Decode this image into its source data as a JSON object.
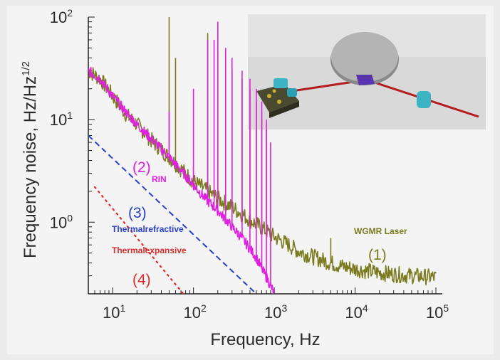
{
  "chart_data": {
    "type": "line",
    "title": "",
    "xlabel": "Frequency, Hz",
    "ylabel": "Frequency noise, Hz/Hz",
    "ylabel_exp": "1/2",
    "xscale": "log",
    "yscale": "log",
    "xlim": [
      5,
      120000
    ],
    "ylim": [
      0.2,
      100
    ],
    "xticks": [
      {
        "base": "10",
        "exp": "1",
        "value": 10
      },
      {
        "base": "10",
        "exp": "2",
        "value": 100
      },
      {
        "base": "10",
        "exp": "3",
        "value": 1000
      },
      {
        "base": "10",
        "exp": "4",
        "value": 10000
      },
      {
        "base": "10",
        "exp": "5",
        "value": 100000
      }
    ],
    "yticks": [
      {
        "base": "10",
        "exp": "0",
        "value": 1
      },
      {
        "base": "10",
        "exp": "1",
        "value": 10
      },
      {
        "base": "10",
        "exp": "2",
        "value": 100
      }
    ],
    "series": [
      {
        "name": "WGMR Laser",
        "tag": "(1)",
        "color": "#7a7a1e",
        "x": [
          5,
          7,
          10,
          15,
          20,
          30,
          50,
          70,
          100,
          150,
          200,
          300,
          500,
          700,
          1000,
          1500,
          2000,
          3000,
          5000,
          7000,
          10000,
          20000,
          50000,
          100000
        ],
        "y": [
          30,
          25,
          17,
          11,
          9,
          6.3,
          4.3,
          3.3,
          2.5,
          2.0,
          1.7,
          1.4,
          1.05,
          0.88,
          0.72,
          0.6,
          0.52,
          0.46,
          0.4,
          0.37,
          0.35,
          0.32,
          0.3,
          0.29
        ],
        "spikes": [
          [
            50,
            100
          ],
          [
            60,
            40
          ],
          [
            150,
            70
          ],
          [
            200,
            90
          ],
          [
            300,
            30
          ],
          [
            400,
            25
          ],
          [
            500,
            20
          ],
          [
            600,
            15
          ],
          [
            700,
            10
          ],
          [
            800,
            8
          ],
          [
            5000,
            0.7
          ]
        ]
      },
      {
        "name": "RIN",
        "tag": "(2)",
        "color": "#e020e0",
        "x": [
          5,
          7,
          10,
          15,
          20,
          30,
          50,
          70,
          100,
          150,
          200,
          300,
          400,
          500,
          600,
          700,
          800,
          900,
          1000
        ],
        "y": [
          30,
          25,
          17,
          11.5,
          9,
          6.5,
          4.3,
          3.2,
          2.3,
          1.6,
          1.3,
          0.9,
          0.7,
          0.55,
          0.45,
          0.35,
          0.29,
          0.24,
          0.2
        ],
        "spikes": [
          [
            50,
            12
          ],
          [
            100,
            20
          ],
          [
            150,
            60
          ],
          [
            180,
            60
          ],
          [
            200,
            90
          ],
          [
            250,
            50
          ],
          [
            300,
            40
          ],
          [
            400,
            30
          ],
          [
            500,
            25
          ],
          [
            600,
            20
          ],
          [
            700,
            15
          ],
          [
            800,
            10
          ],
          [
            900,
            6
          ]
        ]
      },
      {
        "name": "Thermalrefractive",
        "tag": "(3)",
        "color": "#2a3fc8",
        "style": "dashed",
        "x": [
          5,
          600
        ],
        "y": [
          7,
          0.2
        ]
      },
      {
        "name": "Thermalexpansive",
        "tag": "(4)",
        "color": "#e02a2a",
        "style": "dotted",
        "x": [
          6,
          75
        ],
        "y": [
          2.2,
          0.2
        ]
      }
    ]
  }
}
